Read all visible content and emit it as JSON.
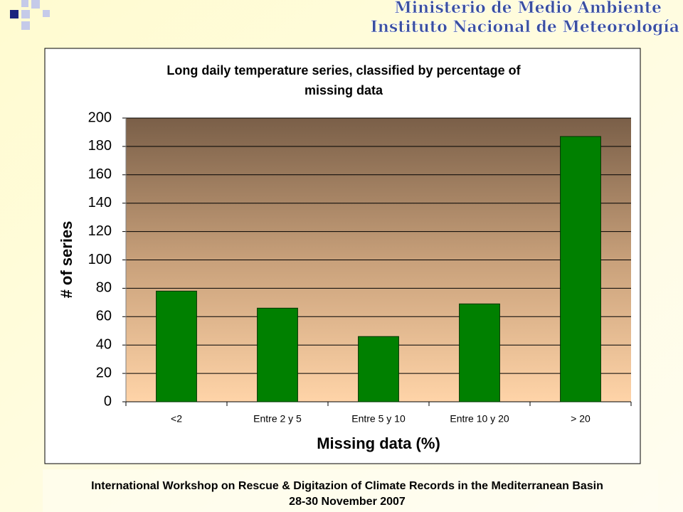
{
  "header": {
    "lines": [
      "Ministerio de Medio Ambiente",
      "Instituto Nacional de Meteorología"
    ]
  },
  "footer": {
    "lines": [
      "International Workshop on Rescue & Digitazion of Climate Records in the Mediterranean Basin",
      "28-30 November 2007"
    ]
  },
  "chart_data": {
    "type": "bar",
    "title": [
      "Long daily temperature series, classified by percentage of",
      "missing data"
    ],
    "x_label": "Missing data (%)",
    "y_label": "# of series",
    "categories": [
      "<2",
      "Entre 2 y 5",
      "Entre 5 y 10",
      "Entre 10 y 20",
      "> 20"
    ],
    "values": [
      78,
      66,
      46,
      69,
      187
    ],
    "color": "#008000",
    "ylim": [
      0,
      200
    ],
    "yticks": [
      0,
      20,
      40,
      60,
      80,
      100,
      120,
      140,
      160,
      180,
      200
    ],
    "grid": true
  }
}
